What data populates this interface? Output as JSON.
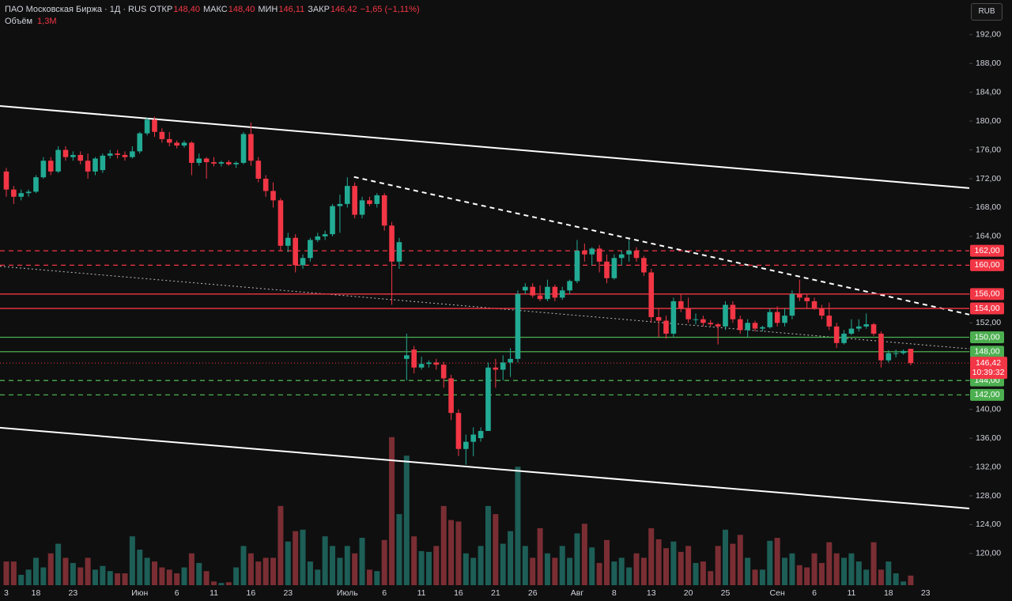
{
  "header": {
    "symbol": "ПАО Московская Биржа · 1Д · RUS",
    "fields": [
      {
        "label": "ОТКР",
        "value": "148,40"
      },
      {
        "label": "МАКС",
        "value": "148,40"
      },
      {
        "label": "МИН",
        "value": "146,11"
      },
      {
        "label": "ЗАКР",
        "value": "146,42"
      }
    ],
    "change": "−1,65 (−1,11%)",
    "volume_title": "Объём",
    "volume_value": "1,3M",
    "currency": "RUB"
  },
  "chart_data": {
    "type": "candlestick",
    "categories": [
      "3",
      null,
      null,
      null,
      "18",
      null,
      null,
      null,
      null,
      "23",
      null,
      null,
      null,
      null,
      null,
      null,
      null,
      null,
      "Июн",
      null,
      null,
      null,
      null,
      "6",
      null,
      null,
      null,
      null,
      "11",
      null,
      null,
      null,
      null,
      "16",
      null,
      null,
      null,
      null,
      "23",
      null,
      null,
      null,
      null,
      null,
      null,
      null,
      "Июль",
      null,
      null,
      null,
      null,
      "6",
      null,
      null,
      null,
      null,
      "11",
      null,
      null,
      null,
      null,
      "16",
      null,
      null,
      null,
      null,
      "21",
      null,
      null,
      null,
      null,
      "26",
      null,
      null,
      null,
      null,
      null,
      "Авг",
      null,
      null,
      null,
      null,
      "8",
      null,
      null,
      null,
      null,
      "13",
      null,
      null,
      null,
      null,
      "20",
      null,
      null,
      null,
      null,
      "25",
      null,
      null,
      null,
      null,
      null,
      null,
      "Сен",
      null,
      null,
      null,
      null,
      "6",
      null,
      null,
      null,
      null,
      "11",
      null,
      null,
      null,
      null,
      "18",
      null,
      null,
      null,
      null,
      "23"
    ],
    "candles": [
      [
        173,
        173.5,
        169.5,
        170.5
      ],
      [
        170.5,
        171,
        168.5,
        169.5
      ],
      [
        169.5,
        170.5,
        169,
        170
      ],
      [
        170,
        170.5,
        169.5,
        170.2
      ],
      [
        170.2,
        172.5,
        170,
        172.2
      ],
      [
        172.2,
        175,
        172,
        174.5
      ],
      [
        174.5,
        175,
        172.5,
        173
      ],
      [
        173,
        176.5,
        172.8,
        176
      ],
      [
        176,
        176.5,
        174.5,
        175
      ],
      [
        175,
        175.8,
        174.5,
        175.3
      ],
      [
        175.3,
        175.8,
        174,
        174.5
      ],
      [
        174.5,
        175.5,
        172,
        173
      ],
      [
        173,
        175,
        172.5,
        174.8
      ],
      [
        173.2,
        175.5,
        172.8,
        175.2
      ],
      [
        175.2,
        176,
        174.8,
        175.5
      ],
      [
        175.5,
        176,
        174.8,
        175.3
      ],
      [
        175.3,
        175.8,
        174.5,
        175
      ],
      [
        175,
        176.5,
        174.8,
        175.8
      ],
      [
        175.8,
        178.5,
        175.5,
        178.3
      ],
      [
        178.3,
        180.5,
        178,
        180.2
      ],
      [
        180.2,
        180.6,
        177.8,
        178.5
      ],
      [
        178.5,
        179,
        177,
        177.5
      ],
      [
        177.5,
        178.5,
        176.5,
        177
      ],
      [
        177,
        177.3,
        176.2,
        176.6
      ],
      [
        176.6,
        177.3,
        176.3,
        177
      ],
      [
        177,
        177.2,
        172.5,
        174.2
      ],
      [
        174.2,
        175.5,
        173.8,
        174.8
      ],
      [
        174.8,
        175,
        172,
        174.3
      ],
      [
        174.3,
        175,
        173.7,
        174.1
      ],
      [
        174.1,
        174.5,
        173.7,
        174.3
      ],
      [
        174.3,
        174.6,
        173.8,
        174
      ],
      [
        174,
        174.4,
        173.5,
        174.2
      ],
      [
        174.2,
        178.5,
        174,
        178.2
      ],
      [
        178.2,
        179.8,
        173.8,
        174.5
      ],
      [
        174.5,
        175,
        171.5,
        172
      ],
      [
        172,
        172.5,
        169.5,
        170.3
      ],
      [
        170.3,
        171.5,
        168,
        169
      ],
      [
        169,
        169.3,
        162,
        162.7
      ],
      [
        162.7,
        164.5,
        161.8,
        163.8
      ],
      [
        163.8,
        164.3,
        159,
        160
      ],
      [
        160,
        161.5,
        159.5,
        161
      ],
      [
        161,
        163.8,
        160.5,
        163.5
      ],
      [
        163.5,
        164.5,
        163.2,
        164
      ],
      [
        164,
        164.8,
        163.5,
        164.3
      ],
      [
        164.3,
        168.5,
        164,
        168.2
      ],
      [
        168.2,
        169.8,
        164.5,
        168.5
      ],
      [
        168.5,
        172.2,
        168,
        171
      ],
      [
        171,
        171.5,
        166.5,
        167
      ],
      [
        167,
        169.5,
        166.5,
        169
      ],
      [
        169,
        169.5,
        168.2,
        168.5
      ],
      [
        168.5,
        170,
        168,
        169.7
      ],
      [
        169.7,
        170,
        164.8,
        165.5
      ],
      [
        165.5,
        166,
        154.5,
        160.5
      ],
      [
        160.5,
        163.8,
        159.5,
        163.2
      ],
      [
        147,
        150.5,
        144,
        147.5
      ],
      [
        148.3,
        148.8,
        145,
        145.8
      ],
      [
        145.8,
        147.3,
        145.5,
        146.3
      ],
      [
        146.3,
        146.8,
        145.8,
        146.5
      ],
      [
        146.5,
        147,
        145.5,
        146.2
      ],
      [
        146.2,
        146.6,
        143,
        144.3
      ],
      [
        144.3,
        144.8,
        138.5,
        139.5
      ],
      [
        139.5,
        140,
        133.5,
        134.5
      ],
      [
        134.5,
        136.5,
        132.3,
        135.5
      ],
      [
        135.5,
        137.5,
        133.5,
        136.5
      ],
      [
        136,
        137.5,
        135.5,
        137
      ],
      [
        137,
        146.5,
        137,
        145.8
      ],
      [
        145.8,
        147,
        143,
        145.5
      ],
      [
        145.5,
        147.5,
        144,
        146.5
      ],
      [
        146.5,
        148.5,
        144.5,
        147
      ],
      [
        147,
        156.5,
        146.5,
        156
      ],
      [
        156.5,
        157.5,
        156,
        157
      ],
      [
        157,
        157.5,
        155.5,
        155.8
      ],
      [
        155.8,
        157.2,
        155,
        155.3
      ],
      [
        155.3,
        158,
        155,
        157
      ],
      [
        157,
        157.3,
        155,
        155.5
      ],
      [
        155.5,
        157,
        155.2,
        156.5
      ],
      [
        156.5,
        158,
        156,
        157.8
      ],
      [
        157.8,
        163.5,
        157.5,
        162
      ],
      [
        162,
        163,
        160.5,
        161.5
      ],
      [
        161.5,
        162.5,
        160,
        162.3
      ],
      [
        162.3,
        162.8,
        159,
        160.5
      ],
      [
        160.5,
        161.5,
        157.5,
        158.2
      ],
      [
        158.2,
        161.5,
        158,
        161
      ],
      [
        161,
        162,
        160,
        161.5
      ],
      [
        161.5,
        163.5,
        160.5,
        162
      ],
      [
        162,
        162.5,
        160.5,
        161
      ],
      [
        161,
        161.3,
        158.5,
        159
      ],
      [
        159,
        159.5,
        152,
        152.8
      ],
      [
        152.8,
        154,
        150,
        152.3
      ],
      [
        152.3,
        153,
        149.8,
        150.5
      ],
      [
        150.5,
        155.5,
        150,
        155
      ],
      [
        155,
        156,
        153.5,
        154
      ],
      [
        154,
        155.5,
        152,
        152.5
      ],
      [
        152.5,
        153.3,
        151.8,
        152.5
      ],
      [
        152.5,
        153,
        151.5,
        152
      ],
      [
        152,
        152.4,
        151.5,
        151.8
      ],
      [
        151.8,
        152,
        149,
        151.5
      ],
      [
        151.5,
        155,
        151,
        154.5
      ],
      [
        154.5,
        155,
        152,
        152.5
      ],
      [
        152.5,
        153,
        150.5,
        151
      ],
      [
        151,
        152.5,
        150,
        152
      ],
      [
        152,
        152.3,
        150.8,
        151.2
      ],
      [
        151.2,
        151.6,
        150.8,
        151.4
      ],
      [
        151.4,
        154,
        151.2,
        153.5
      ],
      [
        153.5,
        154.3,
        151.5,
        152
      ],
      [
        152,
        154,
        151.5,
        153
      ],
      [
        153,
        156.5,
        152.5,
        156
      ],
      [
        156,
        158,
        155,
        155.5
      ],
      [
        155.5,
        156,
        154,
        155
      ],
      [
        155,
        155.5,
        153.8,
        154
      ],
      [
        154,
        154.5,
        152.5,
        153
      ],
      [
        153,
        154.8,
        151,
        151.5
      ],
      [
        151.5,
        152,
        148.5,
        149.2
      ],
      [
        149.2,
        151,
        149,
        150.5
      ],
      [
        150.5,
        152.5,
        150.3,
        151.2
      ],
      [
        151.2,
        152.5,
        150.8,
        151.5
      ],
      [
        151.5,
        153.3,
        151.2,
        151.8
      ],
      [
        151.8,
        152,
        150.2,
        150.5
      ],
      [
        150.5,
        150.8,
        145.8,
        146.8
      ],
      [
        146.8,
        148.2,
        146.5,
        147.8
      ],
      [
        147.8,
        148.3,
        147.2,
        147.8
      ],
      [
        147.8,
        148.3,
        147.6,
        148.1
      ],
      [
        148.4,
        148.4,
        146.11,
        146.42
      ],
      null,
      null
    ],
    "volume": [
      3.2,
      3.2,
      1.4,
      2.1,
      3.7,
      2.4,
      4.3,
      5.6,
      3.7,
      3.0,
      2.4,
      3.7,
      2.1,
      2.6,
      1.9,
      1.6,
      1.6,
      6.6,
      4.8,
      3.7,
      3.2,
      2.4,
      2.1,
      1.6,
      2.4,
      4.3,
      3.0,
      1.9,
      0.5,
      0.3,
      0.4,
      2.4,
      5.3,
      4.3,
      3.2,
      3.7,
      3.7,
      10.7,
      5.9,
      7.3,
      7.5,
      3.2,
      2.1,
      6.6,
      5.3,
      3.7,
      5.3,
      4.3,
      6.4,
      2.1,
      1.9,
      6.1,
      20,
      9.6,
      17.5,
      6.6,
      4.6,
      4.5,
      5.3,
      10.7,
      8.8,
      8.6,
      4.3,
      3.7,
      5.3,
      10.7,
      9.6,
      5.6,
      7.3,
      16,
      5.3,
      3.7,
      7.7,
      4.3,
      3.7,
      5.3,
      3.7,
      7.0,
      8.3,
      5.1,
      3.0,
      6.1,
      3.2,
      3.7,
      2.4,
      4.3,
      3.7,
      7.7,
      6.2,
      5.0,
      5.9,
      4.5,
      5.3,
      3.0,
      3.2,
      1.9,
      5.3,
      7.5,
      5.6,
      6.8,
      3.7,
      2.1,
      2.1,
      6.0,
      6.4,
      3.7,
      4.3,
      2.7,
      2.4,
      4.3,
      3.0,
      5.8,
      4.3,
      3.7,
      4.3,
      3.2,
      2.1,
      5.8,
      2.1,
      3.2,
      1.6,
      0.5,
      1.3,
      null,
      null
    ],
    "up_color": "#22ab94",
    "down_color": "#f23645",
    "volume_up_color": "#1d5e57",
    "volume_down_color": "#7a2e33",
    "xlim": [
      -0.85,
      129.9
    ],
    "ylim": [
      115.6,
      196.8
    ],
    "volume_ylim": [
      0,
      25
    ],
    "yticks": [
      {
        "value": 120,
        "label": "120,00"
      },
      {
        "value": 124,
        "label": "124,00"
      },
      {
        "value": 128,
        "label": "128,00"
      },
      {
        "value": 132,
        "label": "132,00"
      },
      {
        "value": 136,
        "label": "136,00"
      },
      {
        "value": 140,
        "label": "140,00"
      },
      {
        "value": 144,
        "label": "144,00"
      },
      {
        "value": 148,
        "label": "148,00"
      },
      {
        "value": 152,
        "label": "152,00"
      },
      {
        "value": 156,
        "label": "156,00"
      },
      {
        "value": 160,
        "label": "160,00"
      },
      {
        "value": 164,
        "label": "164,00"
      },
      {
        "value": 168,
        "label": "168,00"
      },
      {
        "value": 172,
        "label": "172,00"
      },
      {
        "value": 176,
        "label": "176,00"
      },
      {
        "value": 180,
        "label": "180,00"
      },
      {
        "value": 184,
        "label": "184,00"
      },
      {
        "value": 188,
        "label": "188,00"
      },
      {
        "value": 192,
        "label": "192,00"
      }
    ],
    "levels": [
      {
        "value": 162,
        "label": "162,00",
        "color": "#f23645",
        "style": "dashed"
      },
      {
        "value": 160,
        "label": "160,00",
        "color": "#f23645",
        "style": "dashed"
      },
      {
        "value": 156,
        "label": "156,00",
        "color": "#f23645",
        "style": "solid"
      },
      {
        "value": 154,
        "label": "154,00",
        "color": "#f23645",
        "style": "solid"
      },
      {
        "value": 150,
        "label": "150,00",
        "color": "#4caf50",
        "style": "solid"
      },
      {
        "value": 148,
        "label": "148,00",
        "color": "#4caf50",
        "style": "solid"
      },
      {
        "value": 144,
        "label": "144,00",
        "color": "#4caf50",
        "style": "dashed"
      },
      {
        "value": 142,
        "label": "142,00",
        "color": "#4caf50",
        "style": "dashed"
      }
    ],
    "current_price": {
      "value": 146.42,
      "label": "146,42",
      "timer": "10:39:32",
      "color": "#f23645"
    },
    "trendlines": [
      {
        "x": [
          -0.85,
          129.9
        ],
        "y": [
          182.1,
          170.7
        ],
        "style": "solid"
      },
      {
        "x": [
          -0.85,
          129.9
        ],
        "y": [
          137.45,
          126.25
        ],
        "style": "solid"
      },
      {
        "x": [
          46.9,
          129.9
        ],
        "y": [
          172.25,
          153.15
        ],
        "style": "dashed"
      },
      {
        "x": [
          -0.85,
          129.9
        ],
        "y": [
          159.85,
          148.4
        ],
        "style": "dotted"
      }
    ]
  }
}
